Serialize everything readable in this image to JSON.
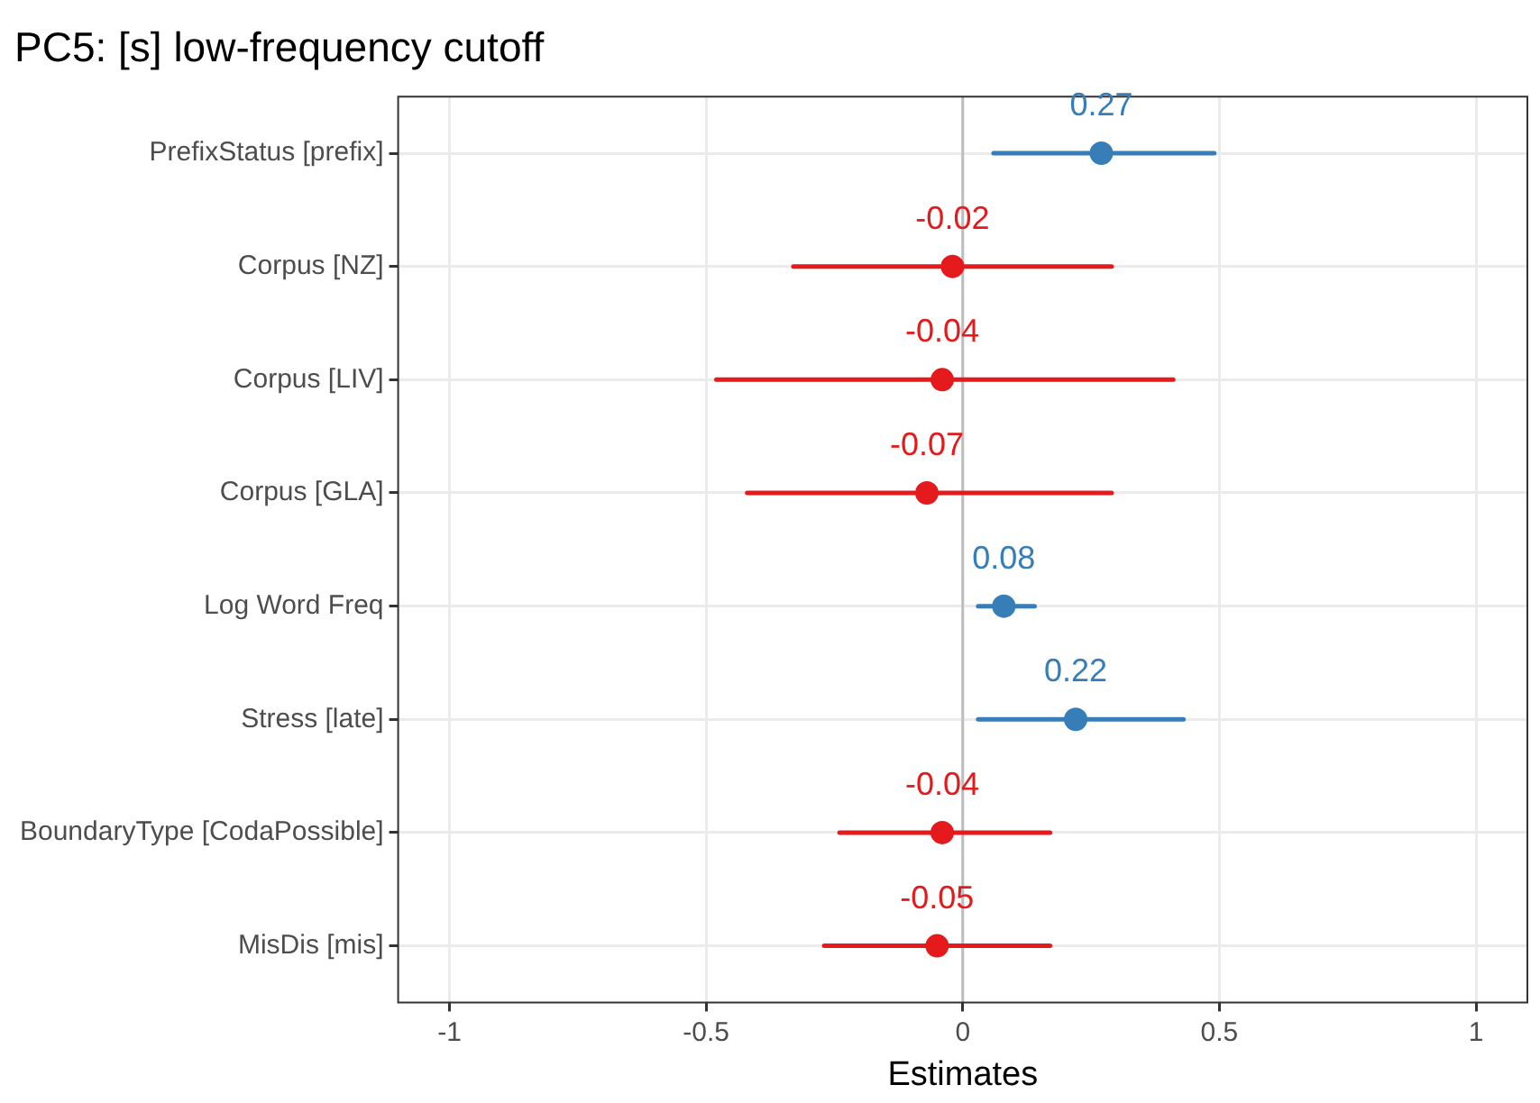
{
  "chart_data": {
    "type": "scatter",
    "orientation": "horizontal",
    "title": "PC5: [s] low-frequency cutoff",
    "xlabel": "Estimates",
    "categories": [
      "PrefixStatus [prefix]",
      "Corpus [NZ]",
      "Corpus [LIV]",
      "Corpus [GLA]",
      "Log Word Freq",
      "Stress [late]",
      "BoundaryType [CodaPossible]",
      "MisDis [mis]"
    ],
    "values": [
      0.27,
      -0.02,
      -0.04,
      -0.07,
      0.08,
      0.22,
      -0.04,
      -0.05
    ],
    "errors": [
      [
        0.06,
        0.49
      ],
      [
        -0.33,
        0.29
      ],
      [
        -0.48,
        0.41
      ],
      [
        -0.42,
        0.29
      ],
      [
        0.03,
        0.14
      ],
      [
        0.03,
        0.43
      ],
      [
        -0.24,
        0.17
      ],
      [
        -0.27,
        0.17
      ]
    ],
    "colors": [
      "#377eb8",
      "#e41a1c",
      "#e41a1c",
      "#e41a1c",
      "#377eb8",
      "#377eb8",
      "#e41a1c",
      "#e41a1c"
    ],
    "xlim": [
      -1.1,
      1.1
    ],
    "xticks": [
      -1,
      -0.5,
      0,
      0.5,
      1
    ],
    "ref_lines": [
      {
        "axis": "x",
        "value": 0,
        "color": "#bdbdbd"
      }
    ],
    "grid": true,
    "data_labels": true,
    "marker": "circle"
  }
}
